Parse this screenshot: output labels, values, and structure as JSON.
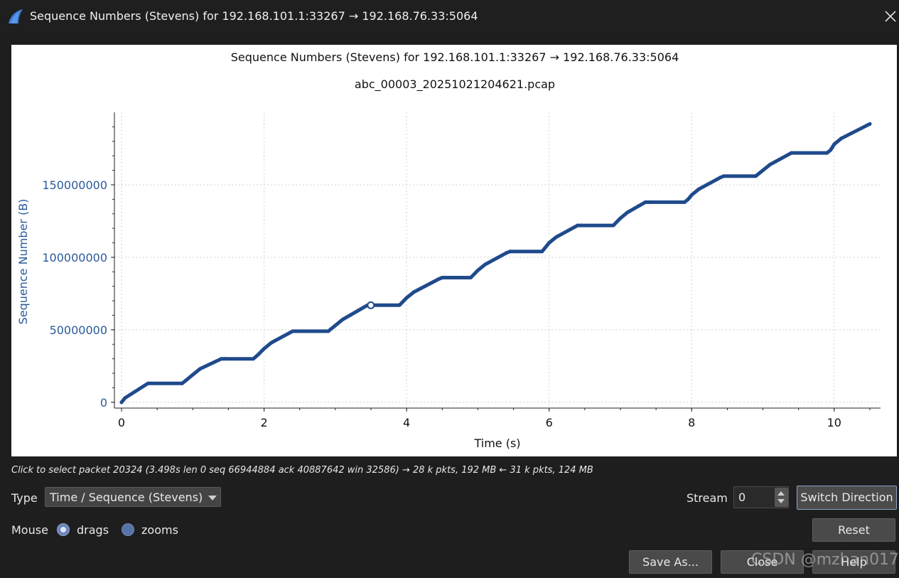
{
  "window": {
    "title": "Sequence Numbers (Stevens) for 192.168.101.1:33267 → 192.168.76.33:5064"
  },
  "colors": {
    "accent": "#2b5fa8",
    "series": "#1f4a8c",
    "axis_text": "#2a5a9a",
    "dialog_bg": "#1e1e1e"
  },
  "icons": {
    "app": "wireshark-fin-icon",
    "close": "close-icon",
    "combo": "chevron-down-icon"
  },
  "graph": {
    "title": "Sequence Numbers (Stevens) for 192.168.101.1:33267 → 192.168.76.33:5064",
    "subtitle": "abc_00003_20251021204621.pcap"
  },
  "chart_data": {
    "type": "line",
    "title": "Sequence Numbers (Stevens) for 192.168.101.1:33267 → 192.168.76.33:5064",
    "subtitle": "abc_00003_20251021204621.pcap",
    "xlabel": "Time (s)",
    "ylabel": "Sequence Number (B)",
    "xlim": [
      -0.1,
      10.65
    ],
    "ylim": [
      -4000000,
      200000000
    ],
    "xticks": [
      "0",
      "2",
      "4",
      "6",
      "8",
      "10"
    ],
    "yticks": [
      "0",
      "50000000",
      "100000000",
      "150000000"
    ],
    "grid": true,
    "series": [
      {
        "x": [
          0,
          0.05,
          0.37,
          0.85,
          0.9,
          1.0,
          1.1,
          1.4,
          1.45,
          1.85,
          1.92,
          2.0,
          2.1,
          2.4,
          2.45,
          2.9,
          3.0,
          3.1,
          3.45,
          3.5,
          3.9,
          4.0,
          4.1,
          4.45,
          4.5,
          4.9,
          5.0,
          5.1,
          5.4,
          5.45,
          5.9,
          6.0,
          6.1,
          6.4,
          6.45,
          6.9,
          7.0,
          7.1,
          7.35,
          7.4,
          7.9,
          7.95,
          8.0,
          8.1,
          8.4,
          8.45,
          8.9,
          8.95,
          9.0,
          9.1,
          9.4,
          9.45,
          9.9,
          9.95,
          10.0,
          10.1,
          10.5
        ],
        "y": [
          0,
          3000000,
          13000000,
          13000000,
          15000000,
          19000000,
          23000000,
          30000000,
          30000000,
          30000000,
          33000000,
          37000000,
          41000000,
          49000000,
          49000000,
          49000000,
          53000000,
          57000000,
          66944884,
          67000000,
          67000000,
          72000000,
          76000000,
          85000000,
          86000000,
          86000000,
          91000000,
          95000000,
          103000000,
          104000000,
          104000000,
          110000000,
          114000000,
          122000000,
          122000000,
          122000000,
          127000000,
          131000000,
          138000000,
          138000000,
          138000000,
          140000000,
          143000000,
          147000000,
          155000000,
          156000000,
          156000000,
          158000000,
          160000000,
          164000000,
          172000000,
          172000000,
          172000000,
          174000000,
          178000000,
          182000000,
          192000000
        ]
      }
    ],
    "selected_point": {
      "x": 3.498,
      "y": 66944884
    }
  },
  "status": {
    "hint": "Click to select packet 20324 (3.498s len 0 seq 66944884 ack 40887642 win 32586) → 28 k pkts, 192 MB ← 31 k pkts, 124 MB"
  },
  "controls": {
    "type_label": "Type",
    "type_value": "Time / Sequence (Stevens)",
    "stream_label": "Stream",
    "stream_value": "0",
    "switch_direction": "Switch Direction",
    "mouse_label": "Mouse",
    "drags_label": "drags",
    "zooms_label": "zooms",
    "reset": "Reset",
    "save_as": "Save As...",
    "close": "Close",
    "help": "Help"
  },
  "watermark": "CSDN @mzhan017"
}
